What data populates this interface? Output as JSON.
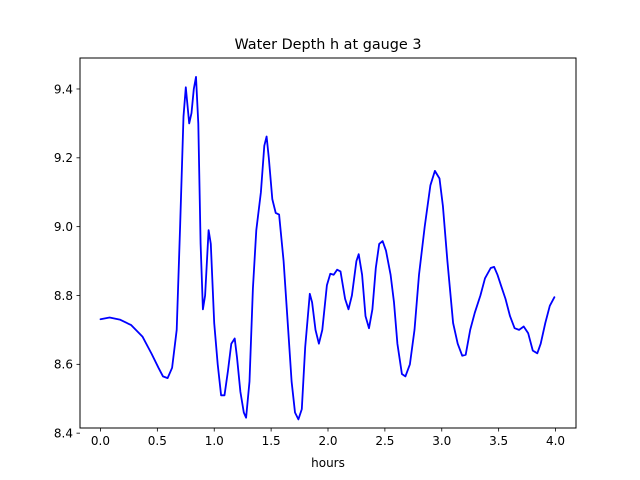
{
  "chart_data": {
    "type": "line",
    "title": "Water Depth h at gauge 3",
    "xlabel": "hours",
    "ylabel": "",
    "xlim": [
      -0.18,
      4.18
    ],
    "ylim": [
      8.415,
      9.49
    ],
    "xticks": [
      0.0,
      0.5,
      1.0,
      1.5,
      2.0,
      2.5,
      3.0,
      3.5,
      4.0
    ],
    "xtick_labels": [
      "0.0",
      "0.5",
      "1.0",
      "1.5",
      "2.0",
      "2.5",
      "3.0",
      "3.5",
      "4.0"
    ],
    "yticks": [
      8.4,
      8.6,
      8.8,
      9.0,
      9.2,
      9.4
    ],
    "ytick_labels": [
      "8.4",
      "8.6",
      "8.8",
      "9.0",
      "9.2",
      "9.4"
    ],
    "grid": false,
    "legend": "none",
    "series": [
      {
        "color": "#0000ff",
        "points": [
          [
            0.0,
            8.731
          ],
          [
            0.08,
            8.736
          ],
          [
            0.17,
            8.73
          ],
          [
            0.27,
            8.714
          ],
          [
            0.37,
            8.68
          ],
          [
            0.45,
            8.63
          ],
          [
            0.51,
            8.59
          ],
          [
            0.55,
            8.565
          ],
          [
            0.59,
            8.56
          ],
          [
            0.63,
            8.59
          ],
          [
            0.67,
            8.7
          ],
          [
            0.7,
            9.0
          ],
          [
            0.73,
            9.32
          ],
          [
            0.75,
            9.405
          ],
          [
            0.78,
            9.3
          ],
          [
            0.8,
            9.33
          ],
          [
            0.82,
            9.4
          ],
          [
            0.84,
            9.435
          ],
          [
            0.86,
            9.3
          ],
          [
            0.88,
            8.95
          ],
          [
            0.9,
            8.76
          ],
          [
            0.92,
            8.8
          ],
          [
            0.95,
            8.99
          ],
          [
            0.97,
            8.95
          ],
          [
            1.0,
            8.72
          ],
          [
            1.03,
            8.6
          ],
          [
            1.06,
            8.51
          ],
          [
            1.09,
            8.51
          ],
          [
            1.12,
            8.58
          ],
          [
            1.15,
            8.66
          ],
          [
            1.18,
            8.675
          ],
          [
            1.2,
            8.62
          ],
          [
            1.23,
            8.52
          ],
          [
            1.26,
            8.46
          ],
          [
            1.28,
            8.445
          ],
          [
            1.31,
            8.55
          ],
          [
            1.34,
            8.82
          ],
          [
            1.37,
            8.99
          ],
          [
            1.41,
            9.1
          ],
          [
            1.44,
            9.235
          ],
          [
            1.46,
            9.262
          ],
          [
            1.48,
            9.2
          ],
          [
            1.51,
            9.08
          ],
          [
            1.54,
            9.04
          ],
          [
            1.57,
            9.035
          ],
          [
            1.61,
            8.9
          ],
          [
            1.65,
            8.7
          ],
          [
            1.68,
            8.55
          ],
          [
            1.71,
            8.46
          ],
          [
            1.74,
            8.44
          ],
          [
            1.77,
            8.47
          ],
          [
            1.8,
            8.65
          ],
          [
            1.84,
            8.805
          ],
          [
            1.86,
            8.78
          ],
          [
            1.89,
            8.7
          ],
          [
            1.92,
            8.66
          ],
          [
            1.95,
            8.7
          ],
          [
            1.99,
            8.83
          ],
          [
            2.02,
            8.863
          ],
          [
            2.05,
            8.86
          ],
          [
            2.08,
            8.875
          ],
          [
            2.11,
            8.87
          ],
          [
            2.15,
            8.79
          ],
          [
            2.18,
            8.76
          ],
          [
            2.21,
            8.8
          ],
          [
            2.25,
            8.9
          ],
          [
            2.27,
            8.92
          ],
          [
            2.3,
            8.86
          ],
          [
            2.33,
            8.74
          ],
          [
            2.36,
            8.705
          ],
          [
            2.39,
            8.76
          ],
          [
            2.42,
            8.88
          ],
          [
            2.45,
            8.95
          ],
          [
            2.48,
            8.958
          ],
          [
            2.51,
            8.93
          ],
          [
            2.55,
            8.86
          ],
          [
            2.58,
            8.78
          ],
          [
            2.61,
            8.66
          ],
          [
            2.65,
            8.572
          ],
          [
            2.68,
            8.565
          ],
          [
            2.72,
            8.6
          ],
          [
            2.76,
            8.7
          ],
          [
            2.8,
            8.86
          ],
          [
            2.85,
            9.0
          ],
          [
            2.9,
            9.12
          ],
          [
            2.94,
            9.162
          ],
          [
            2.98,
            9.14
          ],
          [
            3.01,
            9.06
          ],
          [
            3.05,
            8.9
          ],
          [
            3.1,
            8.72
          ],
          [
            3.14,
            8.66
          ],
          [
            3.18,
            8.625
          ],
          [
            3.21,
            8.628
          ],
          [
            3.25,
            8.7
          ],
          [
            3.29,
            8.75
          ],
          [
            3.34,
            8.8
          ],
          [
            3.38,
            8.85
          ],
          [
            3.43,
            8.88
          ],
          [
            3.46,
            8.883
          ],
          [
            3.49,
            8.86
          ],
          [
            3.52,
            8.83
          ],
          [
            3.56,
            8.79
          ],
          [
            3.6,
            8.74
          ],
          [
            3.64,
            8.705
          ],
          [
            3.68,
            8.7
          ],
          [
            3.72,
            8.71
          ],
          [
            3.76,
            8.69
          ],
          [
            3.8,
            8.64
          ],
          [
            3.84,
            8.632
          ],
          [
            3.87,
            8.66
          ],
          [
            3.91,
            8.72
          ],
          [
            3.95,
            8.77
          ],
          [
            3.99,
            8.795
          ]
        ]
      }
    ]
  }
}
